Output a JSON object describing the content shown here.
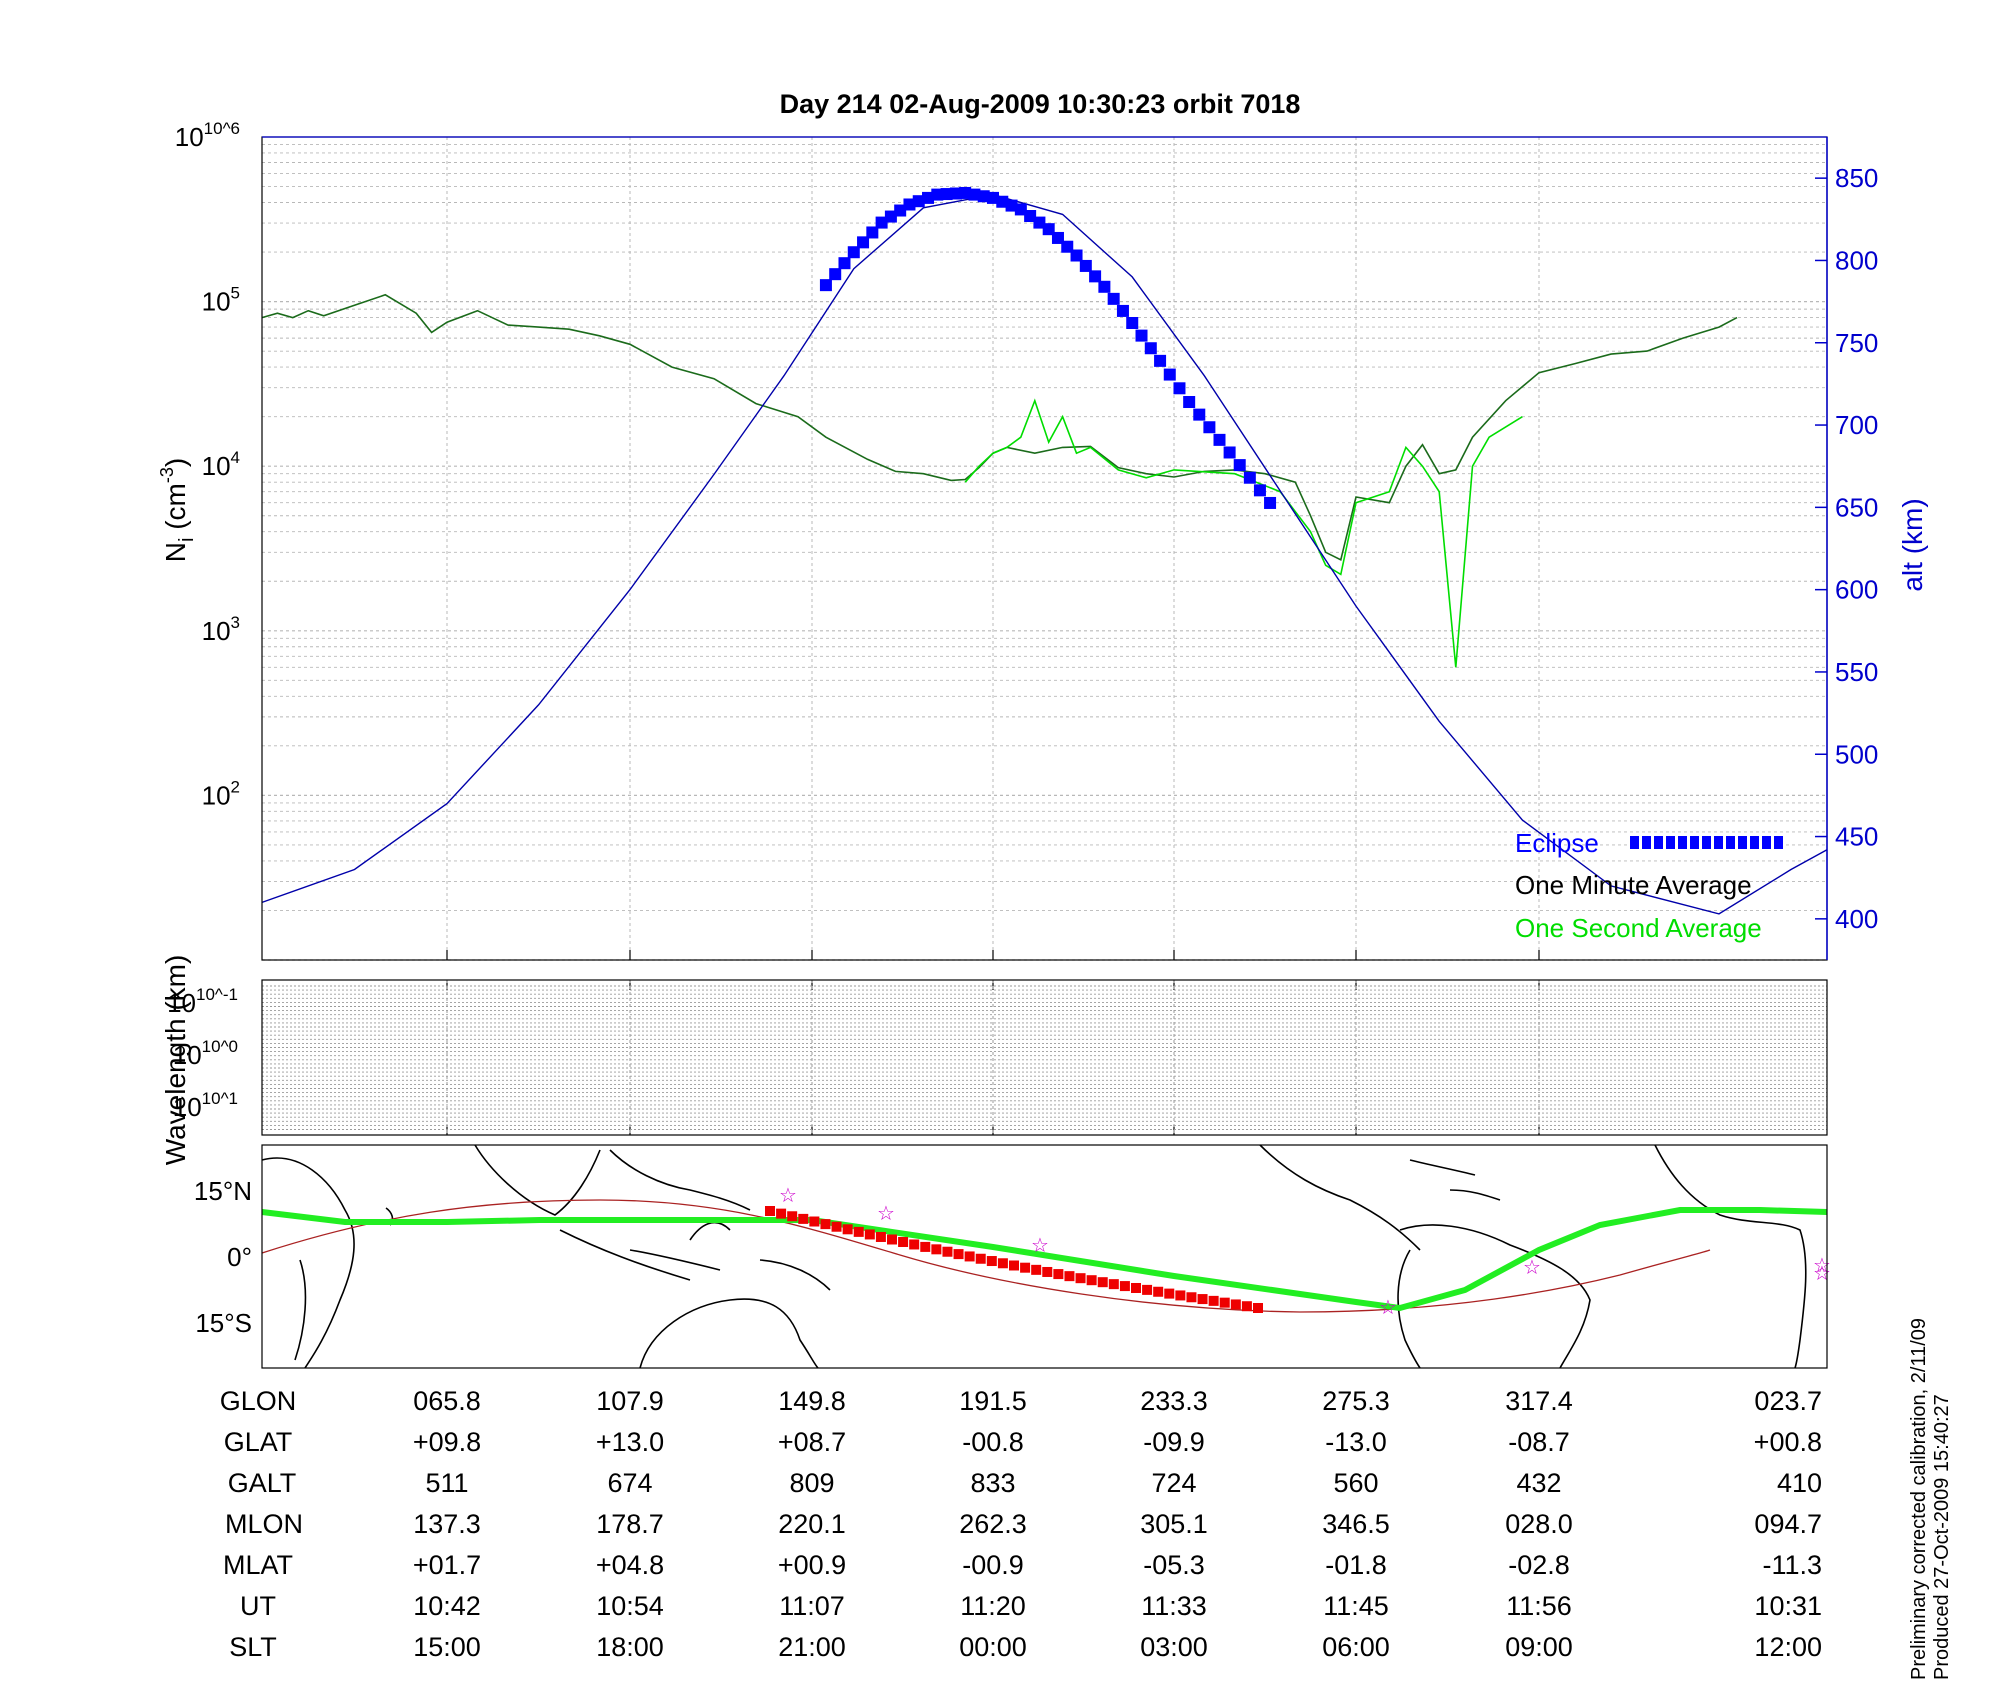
{
  "title": "Day 214  02-Aug-2009 10:30:23   orbit 7018",
  "colors": {
    "eclipse": "#0000ff",
    "minute_avg": "#000000",
    "second_avg": "#00dd00",
    "altitude": "#0000aa",
    "track": "#22ee22",
    "track_eclipse": "#ee0000",
    "magnetic_equator": "#aa2222",
    "star_marker": "#cc00cc"
  },
  "chart_data": [
    {
      "panel": "ion-density",
      "type": "line",
      "y_scale": "log",
      "ylim": [
        10,
        1000000
      ],
      "y_ticks": [
        "10^2",
        "10^3",
        "10^4",
        "10^5",
        "10^6"
      ],
      "ylabel": "N_i (cm^-3)",
      "y2label": "alt (km)",
      "y2lim": [
        375,
        875
      ],
      "y2_ticks": [
        400,
        450,
        500,
        550,
        600,
        650,
        700,
        750,
        800,
        850
      ],
      "grid": true,
      "legend": {
        "placement": "bottom-right",
        "entries": [
          "Eclipse",
          "One Minute Average",
          "One Second Average"
        ]
      },
      "series": [
        {
          "name": "One Minute Average",
          "axis": "left",
          "x_ut": [
            "10:30",
            "10:31",
            "10:32",
            "10:33",
            "10:34",
            "10:36",
            "10:38",
            "10:40",
            "10:41",
            "10:42",
            "10:44",
            "10:46",
            "10:48",
            "10:50",
            "10:52",
            "10:54",
            "10:57",
            "11:00",
            "11:03",
            "11:06",
            "11:08",
            "11:11",
            "11:13",
            "11:15",
            "11:17",
            "11:18",
            "11:19",
            "11:20",
            "11:21",
            "11:23",
            "11:25",
            "11:27",
            "11:29",
            "11:31",
            "11:33",
            "11:35",
            "11:37",
            "11:39",
            "11:41",
            "11:42",
            "11:43",
            "11:44",
            "11:45",
            "11:47",
            "11:48",
            "11:49",
            "11:50",
            "11:51",
            "11:52",
            "11:54",
            "11:56",
            "11:58",
            "12:00",
            "12:02",
            "12:04",
            "12:06",
            "12:07"
          ],
          "values": [
            80000,
            85000,
            80000,
            88000,
            82000,
            95000,
            110000,
            85000,
            65000,
            75000,
            88000,
            72000,
            70000,
            68000,
            62000,
            55000,
            40000,
            34000,
            24000,
            20000,
            15000,
            11000,
            9300,
            9000,
            8200,
            8300,
            9800,
            12000,
            13000,
            12000,
            13000,
            13200,
            9800,
            9000,
            8600,
            9300,
            9500,
            9000,
            8000,
            5000,
            3000,
            2700,
            6500,
            6000,
            10000,
            13500,
            9000,
            9500,
            15000,
            25000,
            37000,
            42000,
            48000,
            50000,
            60000,
            70000,
            80000
          ]
        },
        {
          "name": "One Second Average",
          "axis": "left",
          "x_ut": [
            "11:18",
            "11:19",
            "11:20",
            "11:21",
            "11:22",
            "11:23",
            "11:24",
            "11:25",
            "11:26",
            "11:27",
            "11:29",
            "11:31",
            "11:33",
            "11:37",
            "11:40",
            "11:42",
            "11:43",
            "11:44",
            "11:45",
            "11:47",
            "11:48",
            "11:49",
            "11:50",
            "11:51",
            "11:52",
            "11:53",
            "11:55"
          ],
          "values": [
            8000,
            10000,
            12000,
            13000,
            15000,
            25000,
            14000,
            20000,
            12000,
            13000,
            9500,
            8500,
            9500,
            9000,
            7000,
            4000,
            2500,
            2200,
            6000,
            7000,
            13000,
            10000,
            7000,
            600,
            10000,
            15000,
            20000
          ]
        },
        {
          "name": "Eclipse",
          "axis": "right",
          "x_ut": [
            "11:08",
            "11:10",
            "11:12",
            "11:14",
            "11:16",
            "11:18",
            "11:20",
            "11:22",
            "11:24",
            "11:26",
            "11:28",
            "11:30",
            "11:32",
            "11:34",
            "11:36",
            "11:38",
            "11:40"
          ],
          "values": [
            785,
            805,
            823,
            834,
            840,
            841,
            838,
            831,
            819,
            803,
            784,
            762,
            739,
            714,
            691,
            668,
            645
          ]
        },
        {
          "name": "Altitude",
          "axis": "right",
          "x_ut": [
            "10:30",
            "10:36",
            "10:42",
            "10:48",
            "10:54",
            "11:00",
            "11:05",
            "11:10",
            "11:15",
            "11:20",
            "11:25",
            "11:30",
            "11:35",
            "11:40",
            "11:45",
            "11:50",
            "11:55",
            "12:00",
            "12:06",
            "12:10",
            "12:12"
          ],
          "values": [
            410,
            430,
            470,
            530,
            600,
            670,
            730,
            795,
            832,
            840,
            828,
            790,
            730,
            660,
            590,
            520,
            460,
            420,
            403,
            430,
            442
          ]
        }
      ]
    },
    {
      "panel": "wavelength",
      "type": "heatmap",
      "ylabel": "Wavelength (km)",
      "y_ticks": [
        "10^-1",
        "10^0",
        "10^1"
      ],
      "grid": true
    },
    {
      "panel": "ground-track",
      "type": "map",
      "y_ticks": [
        "15°N",
        "0°",
        "15°S"
      ],
      "series": [
        {
          "name": "Track",
          "x_glon": [
            45,
            65.8,
            107.9,
            149.8,
            191.5,
            233.3,
            275.3,
            290,
            317.4,
            345,
            23.7,
            40
          ],
          "y_glat": [
            12,
            9.8,
            13,
            8.7,
            -0.8,
            -9.9,
            -13,
            -12,
            -8.7,
            5,
            0.8,
            10
          ]
        },
        {
          "name": "Eclipse Track",
          "x_glon": [
            150,
            191,
            230,
            262
          ],
          "y_glat": [
            10,
            0,
            -8,
            -12
          ]
        }
      ]
    }
  ],
  "table": {
    "row_labels": [
      "GLON",
      "GLAT",
      "GALT",
      "MLON",
      "MLAT",
      "UT",
      "SLT"
    ],
    "columns": [
      [
        "065.8",
        "+09.8",
        "511",
        "137.3",
        "+01.7",
        "10:42",
        "15:00"
      ],
      [
        "107.9",
        "+13.0",
        "674",
        "178.7",
        "+04.8",
        "10:54",
        "18:00"
      ],
      [
        "149.8",
        "+08.7",
        "809",
        "220.1",
        "+00.9",
        "11:07",
        "21:00"
      ],
      [
        "191.5",
        "-00.8",
        "833",
        "262.3",
        "-00.9",
        "11:20",
        "00:00"
      ],
      [
        "233.3",
        "-09.9",
        "724",
        "305.1",
        "-05.3",
        "11:33",
        "03:00"
      ],
      [
        "275.3",
        "-13.0",
        "560",
        "346.5",
        "-01.8",
        "11:45",
        "06:00"
      ],
      [
        "317.4",
        "-08.7",
        "432",
        "028.0",
        "-02.8",
        "11:56",
        "09:00"
      ],
      [
        "023.7",
        "+00.8",
        "410",
        "094.7",
        "-11.3",
        "10:31",
        "12:00"
      ]
    ]
  },
  "credits": {
    "line1": "Preliminary corrected calibration, 2/11/09",
    "line2": "Produced 27-Oct-2009 15:40:27"
  }
}
